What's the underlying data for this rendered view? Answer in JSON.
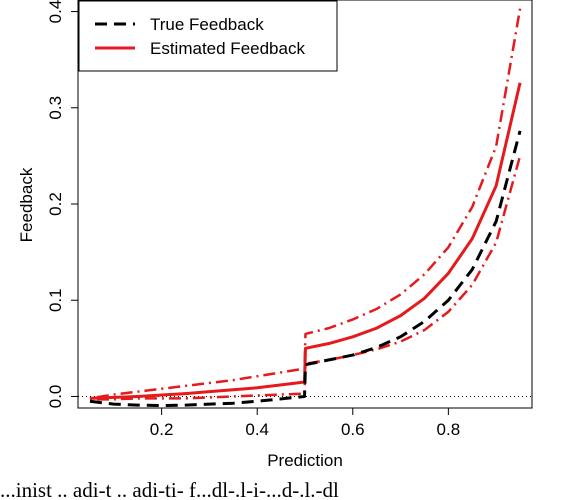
{
  "chart_data": {
    "type": "line",
    "xlabel": "Prediction",
    "ylabel": "Feedback",
    "xlim": [
      0.025,
      0.975
    ],
    "ylim": [
      -0.012,
      0.412
    ],
    "x_ticks": [
      0.2,
      0.4,
      0.6,
      0.8
    ],
    "x_tick_labels": [
      "0.2",
      "0.4",
      "0.6",
      "0.8"
    ],
    "y_ticks": [
      0.0,
      0.1,
      0.2,
      0.3,
      0.4
    ],
    "y_tick_labels": [
      "0.0",
      "0.1",
      "0.2",
      "0.3",
      "0.4"
    ],
    "reference_line": {
      "y": 0.0,
      "style": "dotted"
    },
    "legend": {
      "placement": "top-left",
      "entries": [
        {
          "label": "True Feedback",
          "color": "#000000",
          "style": "dashed"
        },
        {
          "label": "Estimated Feedback",
          "color": "#e41a1c",
          "style": "solid"
        }
      ]
    },
    "series": [
      {
        "name": "True Feedback",
        "color": "#000000",
        "style": "dashed",
        "x": [
          0.05,
          0.1,
          0.15,
          0.2,
          0.25,
          0.3,
          0.35,
          0.4,
          0.45,
          0.499,
          0.501,
          0.55,
          0.6,
          0.65,
          0.7,
          0.75,
          0.8,
          0.85,
          0.9,
          0.95
        ],
        "y": [
          -0.005,
          -0.008,
          -0.009,
          -0.0095,
          -0.009,
          -0.008,
          -0.007,
          -0.005,
          -0.0025,
          0.0,
          0.033,
          0.038,
          0.043,
          0.051,
          0.062,
          0.078,
          0.1,
          0.132,
          0.182,
          0.276
        ]
      },
      {
        "name": "Estimated Feedback",
        "color": "#e41a1c",
        "style": "solid",
        "x": [
          0.05,
          0.1,
          0.15,
          0.2,
          0.25,
          0.3,
          0.35,
          0.4,
          0.45,
          0.499,
          0.501,
          0.55,
          0.6,
          0.65,
          0.7,
          0.75,
          0.8,
          0.85,
          0.9,
          0.95
        ],
        "y": [
          -0.002,
          -0.001,
          0.0,
          0.0015,
          0.003,
          0.005,
          0.007,
          0.009,
          0.012,
          0.015,
          0.05,
          0.055,
          0.062,
          0.071,
          0.084,
          0.102,
          0.128,
          0.164,
          0.219,
          0.326
        ]
      },
      {
        "color": "#e41a1c",
        "style": "dotdash",
        "x": [
          0.05,
          0.1,
          0.15,
          0.2,
          0.25,
          0.3,
          0.35,
          0.4,
          0.45,
          0.499,
          0.501,
          0.55,
          0.6,
          0.65,
          0.7,
          0.75,
          0.8,
          0.85,
          0.9,
          0.95
        ],
        "y": [
          -0.002,
          0.002,
          0.005,
          0.008,
          0.011,
          0.014,
          0.017,
          0.021,
          0.025,
          0.029,
          0.065,
          0.071,
          0.08,
          0.091,
          0.106,
          0.127,
          0.155,
          0.197,
          0.26,
          0.403
        ]
      },
      {
        "color": "#e41a1c",
        "style": "dotdash",
        "x": [
          0.05,
          0.1,
          0.15,
          0.2,
          0.25,
          0.3,
          0.35,
          0.4,
          0.45,
          0.499,
          0.501,
          0.55,
          0.6,
          0.65,
          0.7,
          0.75,
          0.8,
          0.85,
          0.9,
          0.95
        ],
        "y": [
          -0.003,
          -0.003,
          -0.002,
          -0.002,
          -0.002,
          -0.001,
          0.0,
          0.001,
          0.002,
          0.003,
          0.034,
          0.038,
          0.043,
          0.049,
          0.057,
          0.069,
          0.088,
          0.116,
          0.16,
          0.25
        ]
      }
    ]
  },
  "caption": {
    "text": "...inist .. adi-t .. adi-ti- f...dl-.l-i-...d-.l.-dl"
  }
}
